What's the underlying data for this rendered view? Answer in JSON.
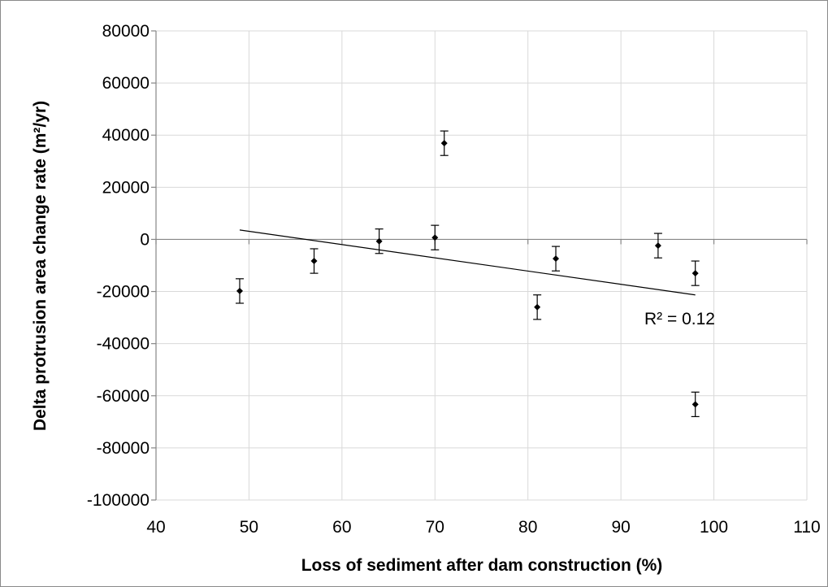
{
  "chart_data": {
    "type": "scatter",
    "title": "",
    "xlabel": "Loss of sediment after dam construction (%)",
    "ylabel": "Delta protrusion area change rate (m²/yr)",
    "xlim": [
      40,
      110
    ],
    "ylim": [
      -100000,
      80000
    ],
    "x_ticks": [
      40,
      50,
      60,
      70,
      80,
      90,
      100,
      110
    ],
    "y_ticks": [
      80000,
      60000,
      40000,
      20000,
      0,
      -20000,
      -40000,
      -60000,
      -80000,
      -100000
    ],
    "grid": true,
    "legend": "none",
    "points": [
      {
        "x": 49,
        "y": -19800,
        "err": 4700
      },
      {
        "x": 57,
        "y": -8300,
        "err": 4700
      },
      {
        "x": 64,
        "y": -700,
        "err": 4700
      },
      {
        "x": 70,
        "y": 700,
        "err": 4700
      },
      {
        "x": 71,
        "y": 36900,
        "err": 4700
      },
      {
        "x": 81,
        "y": -26000,
        "err": 4700
      },
      {
        "x": 83,
        "y": -7400,
        "err": 4700
      },
      {
        "x": 94,
        "y": -2400,
        "err": 4700
      },
      {
        "x": 98,
        "y": -13000,
        "err": 4700
      },
      {
        "x": 98,
        "y": -63300,
        "err": 4700
      }
    ],
    "trendline": {
      "type": "linear",
      "x": [
        49,
        98
      ],
      "y": [
        3600,
        -21300
      ],
      "label": "R² = 0.12"
    }
  },
  "colors": {
    "grid": "#d9d9d9",
    "axis": "#868686",
    "marker": "#000000",
    "trend": "#000000"
  }
}
